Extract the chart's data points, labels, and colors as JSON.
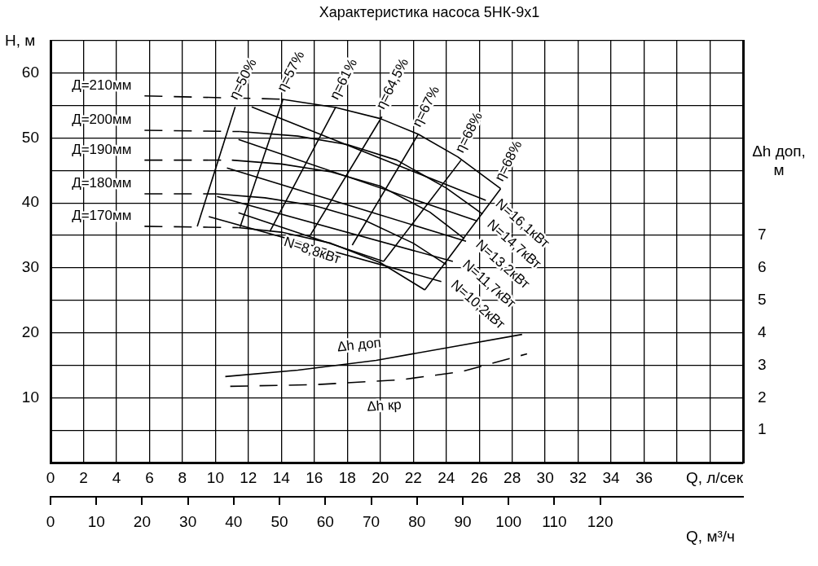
{
  "chart_data": {
    "type": "line",
    "title": "Характеристика насоса 5НК-9х1",
    "xlabel": "Q, л/сек",
    "x2label": "Q, м³/ч",
    "ylabel": "H, м",
    "y2label": "Δh доп, м",
    "xlim": [
      0,
      42
    ],
    "xticks": [
      0,
      2,
      4,
      6,
      8,
      10,
      12,
      14,
      16,
      18,
      20,
      22,
      24,
      26,
      28,
      30,
      32,
      34,
      36,
      {
        "value": 38,
        "label": null
      },
      {
        "value": 40,
        "label": null
      },
      {
        "value": 42,
        "label": null
      }
    ],
    "x2lim": [
      0,
      151.2
    ],
    "x2ticks": [
      0,
      10,
      20,
      30,
      40,
      50,
      60,
      70,
      80,
      90,
      100,
      110,
      120
    ],
    "ylim": [
      0,
      65
    ],
    "yticks": [
      {
        "value": 0,
        "label": null
      },
      {
        "value": 5,
        "label": null
      },
      10,
      {
        "value": 15,
        "label": null
      },
      20,
      {
        "value": 25,
        "label": null
      },
      30,
      {
        "value": 35,
        "label": null
      },
      40,
      {
        "value": 45,
        "label": null
      },
      50,
      {
        "value": 55,
        "label": null
      },
      60,
      {
        "value": 65,
        "label": null
      }
    ],
    "y2lim": [
      0,
      13
    ],
    "y2ticks": [
      1,
      2,
      3,
      4,
      5,
      6,
      7
    ],
    "grid": true,
    "legend": false,
    "marker": "none",
    "line_style": "solid",
    "series": [
      {
        "name": "Д=210мм",
        "color": "#000000",
        "line_style": "dashed",
        "x": [
          5.7,
          14
        ],
        "values": [
          56.5,
          56
        ]
      },
      {
        "color": "#000000",
        "x": [
          14,
          17.3,
          20,
          22.3,
          24.7,
          27.3
        ],
        "values": [
          56,
          54.7,
          53,
          50.6,
          47.1,
          42.2
        ]
      },
      {
        "name": "Д=200мм",
        "color": "#000000",
        "line_style": "dashed",
        "x": [
          5.7,
          11.5
        ],
        "values": [
          51.2,
          51
        ]
      },
      {
        "color": "#000000",
        "x": [
          11.5,
          15,
          18,
          21,
          24,
          26.2
        ],
        "values": [
          51,
          50.3,
          49,
          46.6,
          42.3,
          38.3
        ]
      },
      {
        "name": "Д=190мм",
        "color": "#000000",
        "line_style": "dashed",
        "x": [
          5.7,
          11
        ],
        "values": [
          46.6,
          46.6
        ]
      },
      {
        "color": "#000000",
        "x": [
          11,
          14,
          17,
          20,
          23,
          25.1
        ],
        "values": [
          46.6,
          46,
          44.8,
          42.6,
          38.6,
          34.5
        ]
      },
      {
        "name": "Д=180мм",
        "color": "#000000",
        "line_style": "dashed",
        "x": [
          5.7,
          10
        ],
        "values": [
          41.4,
          41.4
        ]
      },
      {
        "color": "#000000",
        "x": [
          10,
          13,
          16,
          19,
          22,
          24
        ],
        "values": [
          41.4,
          40.8,
          39.6,
          37.4,
          33.8,
          30.5
        ]
      },
      {
        "name": "Д=170мм",
        "color": "#000000",
        "line_style": "dashed",
        "x": [
          5.7,
          11.4
        ],
        "values": [
          36.4,
          36.2
        ]
      },
      {
        "color": "#000000",
        "x": [
          11.4,
          14,
          17,
          20,
          22.7
        ],
        "values": [
          36.2,
          35.5,
          33.8,
          30.8,
          26.6
        ]
      },
      {
        "name": "η=50%",
        "color": "#000000",
        "x": [
          11.2,
          8.9
        ],
        "values": [
          54.8,
          36.4
        ]
      },
      {
        "name": "η=57%",
        "color": "#000000",
        "x": [
          14.1,
          11.5
        ],
        "values": [
          56,
          36.3
        ]
      },
      {
        "name": "η=61%",
        "color": "#000000",
        "x": [
          17.3,
          13.3
        ],
        "values": [
          54.8,
          35.6
        ]
      },
      {
        "name": "η=64,5%",
        "color": "#000000",
        "x": [
          20.1,
          15.7
        ],
        "values": [
          53.3,
          34.8
        ]
      },
      {
        "name": "η=67%",
        "color": "#000000",
        "x": [
          22.3,
          18.3
        ],
        "values": [
          50.6,
          33.5
        ]
      },
      {
        "name": "η=68%",
        "color": "#000000",
        "x": [
          24.9,
          20.2
        ],
        "values": [
          46.6,
          31
        ]
      },
      {
        "name": "η=68%",
        "color": "#000000",
        "x": [
          27.3,
          22.7
        ],
        "values": [
          42.2,
          26.6
        ]
      },
      {
        "name": "N=16,1кВт",
        "color": "#000000",
        "x": [
          12.2,
          26.4
        ],
        "values": [
          54.8,
          40.4
        ]
      },
      {
        "name": "N=14,7кВт",
        "color": "#000000",
        "x": [
          11.4,
          25.9
        ],
        "values": [
          49.8,
          37.2
        ]
      },
      {
        "name": "N=13,2кВт",
        "color": "#000000",
        "x": [
          10.7,
          25.2
        ],
        "values": [
          45.4,
          34.1
        ]
      },
      {
        "name": "N=11,7кВт",
        "color": "#000000",
        "x": [
          10.1,
          24.4
        ],
        "values": [
          41,
          31
        ]
      },
      {
        "name": "N=10,2кВт",
        "color": "#000000",
        "x": [
          9.6,
          23.7
        ],
        "values": [
          37.9,
          27.9
        ]
      },
      {
        "name": "N=8,8кВт",
        "color": "#000000",
        "x": [
          11.4,
          20.2
        ],
        "values": [
          38.5,
          31
        ]
      },
      {
        "name": "Δh доп",
        "color": "#000000",
        "axis": "y2",
        "x": [
          10.6,
          15,
          19.75,
          24.2,
          28.6
        ],
        "values": [
          2.65,
          2.85,
          3.15,
          3.55,
          3.95
        ]
      },
      {
        "name": "Δh кр",
        "color": "#000000",
        "axis": "y2",
        "line_style": "dashed",
        "x": [
          10.9,
          16,
          21.2,
          24.9,
          28.9
        ],
        "values": [
          2.35,
          2.4,
          2.55,
          2.8,
          3.35
        ]
      }
    ]
  }
}
